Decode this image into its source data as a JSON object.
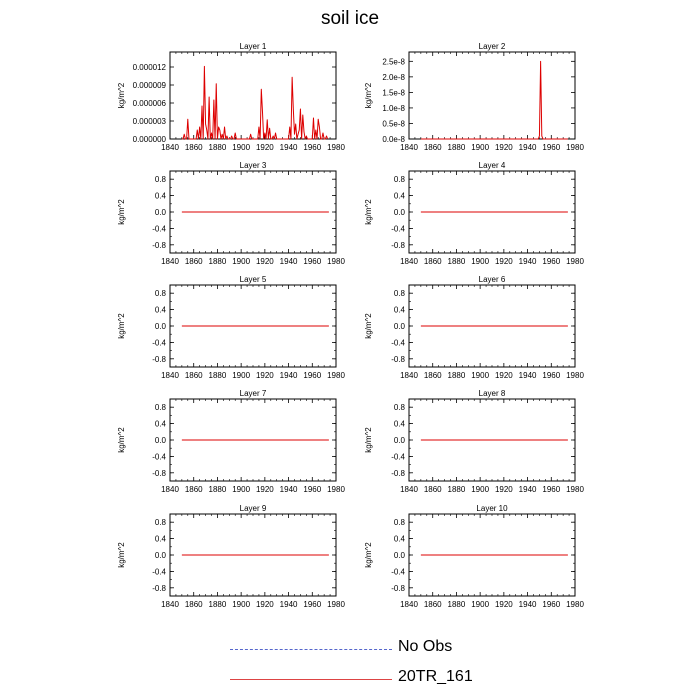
{
  "title": "soil ice",
  "legend": {
    "items": [
      {
        "label": "No Obs",
        "color": "#3355cc",
        "dash": "dashed"
      },
      {
        "label": "20TR_161",
        "color": "#dd2222",
        "dash": "solid"
      }
    ]
  },
  "colors": {
    "series": "#dd0000",
    "axis": "#000000"
  },
  "chart_data": [
    {
      "type": "line",
      "title": "Layer 1",
      "ylabel": "kg/m^2",
      "xlim": [
        1840,
        1980
      ],
      "xticks": [
        1840,
        1860,
        1880,
        1900,
        1920,
        1940,
        1960,
        1980
      ],
      "ylim": [
        0,
        1.45e-05
      ],
      "yticks": [
        0,
        3e-06,
        6e-06,
        9e-06,
        1.2e-05
      ],
      "ytick_labels": [
        "0.000000",
        "0.000003",
        "0.000006",
        "0.000009",
        "0.000012"
      ],
      "series": [
        {
          "x": [
            1850,
            1851,
            1852,
            1853,
            1854,
            1855,
            1856,
            1857,
            1858,
            1859,
            1860,
            1861,
            1862,
            1863,
            1864,
            1865,
            1866,
            1867,
            1868,
            1869,
            1870,
            1871,
            1872,
            1873,
            1874,
            1875,
            1876,
            1877,
            1878,
            1879,
            1880,
            1881,
            1882,
            1883,
            1884,
            1885,
            1886,
            1887,
            1888,
            1889,
            1890,
            1891,
            1892,
            1893,
            1894,
            1895,
            1896,
            1897,
            1898,
            1899,
            1900,
            1901,
            1902,
            1903,
            1904,
            1905,
            1906,
            1907,
            1908,
            1909,
            1910,
            1911,
            1912,
            1913,
            1914,
            1915,
            1916,
            1917,
            1918,
            1919,
            1920,
            1921,
            1922,
            1923,
            1924,
            1925,
            1926,
            1927,
            1928,
            1929,
            1930,
            1931,
            1932,
            1933,
            1934,
            1935,
            1936,
            1937,
            1938,
            1939,
            1940,
            1941,
            1942,
            1943,
            1944,
            1945,
            1946,
            1947,
            1948,
            1949,
            1950,
            1951,
            1952,
            1953,
            1954,
            1955,
            1956,
            1957,
            1958,
            1959,
            1960,
            1961,
            1962,
            1963,
            1964,
            1965,
            1966,
            1967,
            1968,
            1969,
            1970,
            1971,
            1972,
            1973
          ],
          "y": [
            0,
            0,
            8e-07,
            0,
            0,
            3.3e-06,
            0,
            0,
            0,
            0,
            0,
            0,
            0,
            1.5e-06,
            0,
            2e-06,
            0,
            5.5e-06,
            0,
            1.21e-05,
            2.5e-06,
            1.5e-06,
            0,
            7e-06,
            0,
            1e-06,
            0,
            6.5e-06,
            0,
            9.2e-06,
            0,
            2e-06,
            1.5e-06,
            0,
            8e-07,
            0,
            2e-06,
            0,
            5e-07,
            0,
            0,
            0,
            5e-07,
            0,
            0,
            1e-06,
            0,
            0,
            0,
            0,
            0,
            0,
            0,
            0,
            0,
            0,
            0,
            0,
            8e-07,
            0,
            0,
            0,
            0,
            0,
            0,
            2e-06,
            0,
            8.3e-06,
            4.5e-06,
            0,
            1e-06,
            0,
            3.2e-06,
            0,
            1.8e-06,
            0,
            0,
            5e-07,
            0,
            1e-06,
            0,
            0,
            0,
            0,
            0,
            0,
            0,
            0,
            0,
            0,
            0,
            2e-06,
            0,
            1.03e-05,
            5e-06,
            8e-07,
            2.5e-06,
            0,
            8e-07,
            1.5e-06,
            5e-06,
            0,
            4e-06,
            1.2e-06,
            0,
            5e-07,
            0,
            0,
            0,
            0,
            0,
            3.5e-06,
            0,
            1.5e-06,
            0,
            3.3e-06,
            2e-06,
            0,
            0,
            1e-06,
            0,
            0,
            5e-07,
            0
          ]
        }
      ]
    },
    {
      "type": "line",
      "title": "Layer 2",
      "ylabel": "kg/m^2",
      "xlim": [
        1840,
        1980
      ],
      "xticks": [
        1840,
        1860,
        1880,
        1900,
        1920,
        1940,
        1960,
        1980
      ],
      "ylim": [
        0,
        2.8e-08
      ],
      "yticks": [
        0,
        5e-09,
        1e-08,
        1.5e-08,
        2e-08,
        2.5e-08
      ],
      "ytick_labels": [
        "0.0e-8",
        "0.5e-8",
        "1.0e-8",
        "1.5e-8",
        "2.0e-8",
        "2.5e-8"
      ],
      "series": [
        {
          "x": [
            1850,
            1948,
            1949,
            1950,
            1951,
            1952,
            1953,
            1974
          ],
          "y": [
            0,
            0,
            0,
            1e-09,
            2.5e-08,
            1e-09,
            0,
            0
          ]
        }
      ]
    },
    {
      "type": "line",
      "title": "Layer 3",
      "ylabel": "kg/m^2",
      "xlim": [
        1840,
        1980
      ],
      "xticks": [
        1840,
        1860,
        1880,
        1900,
        1920,
        1940,
        1960,
        1980
      ],
      "ylim": [
        -1,
        1
      ],
      "yticks": [
        -0.8,
        -0.4,
        0,
        0.4,
        0.8
      ],
      "ytick_labels": [
        "-0.8",
        "-0.4",
        "0.0",
        "0.4",
        "0.8"
      ],
      "yminor": [
        -0.8,
        -0.6,
        -0.4,
        -0.2,
        0,
        0.2,
        0.4,
        0.6,
        0.8
      ],
      "series": [
        {
          "x": [
            1850,
            1974
          ],
          "y": [
            0,
            0
          ]
        }
      ]
    },
    {
      "type": "line",
      "title": "Layer 4",
      "ylabel": "kg/m^2",
      "xlim": [
        1840,
        1980
      ],
      "xticks": [
        1840,
        1860,
        1880,
        1900,
        1920,
        1940,
        1960,
        1980
      ],
      "ylim": [
        -1,
        1
      ],
      "yticks": [
        -0.8,
        -0.4,
        0,
        0.4,
        0.8
      ],
      "ytick_labels": [
        "-0.8",
        "-0.4",
        "0.0",
        "0.4",
        "0.8"
      ],
      "yminor": [
        -0.8,
        -0.6,
        -0.4,
        -0.2,
        0,
        0.2,
        0.4,
        0.6,
        0.8
      ],
      "series": [
        {
          "x": [
            1850,
            1974
          ],
          "y": [
            0,
            0
          ]
        }
      ]
    },
    {
      "type": "line",
      "title": "Layer 5",
      "ylabel": "kg/m^2",
      "xlim": [
        1840,
        1980
      ],
      "xticks": [
        1840,
        1860,
        1880,
        1900,
        1920,
        1940,
        1960,
        1980
      ],
      "ylim": [
        -1,
        1
      ],
      "yticks": [
        -0.8,
        -0.4,
        0,
        0.4,
        0.8
      ],
      "ytick_labels": [
        "-0.8",
        "-0.4",
        "0.0",
        "0.4",
        "0.8"
      ],
      "yminor": [
        -0.8,
        -0.6,
        -0.4,
        -0.2,
        0,
        0.2,
        0.4,
        0.6,
        0.8
      ],
      "series": [
        {
          "x": [
            1850,
            1974
          ],
          "y": [
            0,
            0
          ]
        }
      ]
    },
    {
      "type": "line",
      "title": "Layer 6",
      "ylabel": "kg/m^2",
      "xlim": [
        1840,
        1980
      ],
      "xticks": [
        1840,
        1860,
        1880,
        1900,
        1920,
        1940,
        1960,
        1980
      ],
      "ylim": [
        -1,
        1
      ],
      "yticks": [
        -0.8,
        -0.4,
        0,
        0.4,
        0.8
      ],
      "ytick_labels": [
        "-0.8",
        "-0.4",
        "0.0",
        "0.4",
        "0.8"
      ],
      "yminor": [
        -0.8,
        -0.6,
        -0.4,
        -0.2,
        0,
        0.2,
        0.4,
        0.6,
        0.8
      ],
      "series": [
        {
          "x": [
            1850,
            1974
          ],
          "y": [
            0,
            0
          ]
        }
      ]
    },
    {
      "type": "line",
      "title": "Layer 7",
      "ylabel": "kg/m^2",
      "xlim": [
        1840,
        1980
      ],
      "xticks": [
        1840,
        1860,
        1880,
        1900,
        1920,
        1940,
        1960,
        1980
      ],
      "ylim": [
        -1,
        1
      ],
      "yticks": [
        -0.8,
        -0.4,
        0,
        0.4,
        0.8
      ],
      "ytick_labels": [
        "-0.8",
        "-0.4",
        "0.0",
        "0.4",
        "0.8"
      ],
      "yminor": [
        -0.8,
        -0.6,
        -0.4,
        -0.2,
        0,
        0.2,
        0.4,
        0.6,
        0.8
      ],
      "series": [
        {
          "x": [
            1850,
            1974
          ],
          "y": [
            0,
            0
          ]
        }
      ]
    },
    {
      "type": "line",
      "title": "Layer 8",
      "ylabel": "kg/m^2",
      "xlim": [
        1840,
        1980
      ],
      "xticks": [
        1840,
        1860,
        1880,
        1900,
        1920,
        1940,
        1960,
        1980
      ],
      "ylim": [
        -1,
        1
      ],
      "yticks": [
        -0.8,
        -0.4,
        0,
        0.4,
        0.8
      ],
      "ytick_labels": [
        "-0.8",
        "-0.4",
        "0.0",
        "0.4",
        "0.8"
      ],
      "yminor": [
        -0.8,
        -0.6,
        -0.4,
        -0.2,
        0,
        0.2,
        0.4,
        0.6,
        0.8
      ],
      "series": [
        {
          "x": [
            1850,
            1974
          ],
          "y": [
            0,
            0
          ]
        }
      ]
    },
    {
      "type": "line",
      "title": "Layer 9",
      "ylabel": "kg/m^2",
      "xlim": [
        1840,
        1980
      ],
      "xticks": [
        1840,
        1860,
        1880,
        1900,
        1920,
        1940,
        1960,
        1980
      ],
      "ylim": [
        -1,
        1
      ],
      "yticks": [
        -0.8,
        -0.4,
        0,
        0.4,
        0.8
      ],
      "ytick_labels": [
        "-0.8",
        "-0.4",
        "0.0",
        "0.4",
        "0.8"
      ],
      "yminor": [
        -0.8,
        -0.6,
        -0.4,
        -0.2,
        0,
        0.2,
        0.4,
        0.6,
        0.8
      ],
      "series": [
        {
          "x": [
            1850,
            1974
          ],
          "y": [
            0,
            0
          ]
        }
      ]
    },
    {
      "type": "line",
      "title": "Layer 10",
      "ylabel": "kg/m^2",
      "xlim": [
        1840,
        1980
      ],
      "xticks": [
        1840,
        1860,
        1880,
        1900,
        1920,
        1940,
        1960,
        1980
      ],
      "ylim": [
        -1,
        1
      ],
      "yticks": [
        -0.8,
        -0.4,
        0,
        0.4,
        0.8
      ],
      "ytick_labels": [
        "-0.8",
        "-0.4",
        "0.0",
        "0.4",
        "0.8"
      ],
      "yminor": [
        -0.8,
        -0.6,
        -0.4,
        -0.2,
        0,
        0.2,
        0.4,
        0.6,
        0.8
      ],
      "series": [
        {
          "x": [
            1850,
            1974
          ],
          "y": [
            0,
            0
          ]
        }
      ]
    }
  ]
}
